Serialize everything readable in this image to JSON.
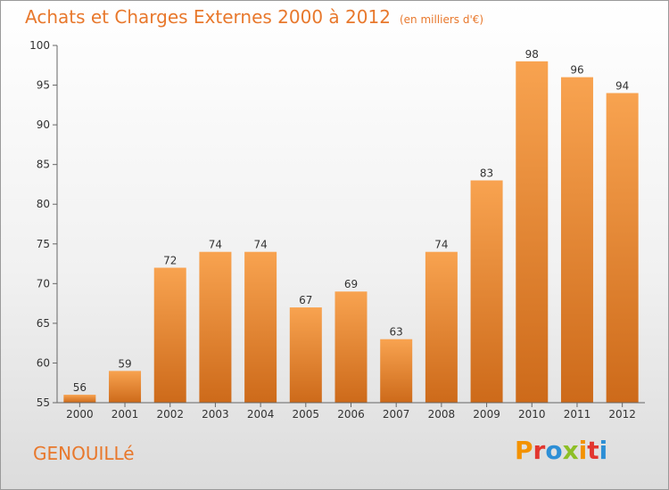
{
  "header": {
    "title": "Achats et Charges Externes 2000 à 2012",
    "unit": "(en milliers d'€)"
  },
  "footer": {
    "place": "GENOUILLé",
    "logo_letters": [
      "P",
      "r",
      "o",
      "x",
      "i",
      "t",
      "i"
    ],
    "logo_colors": [
      "#f39200",
      "#e2362f",
      "#2d8fd6",
      "#8dbf26",
      "#f39200",
      "#e2362f",
      "#2d8fd6"
    ]
  },
  "colors": {
    "bar_light": "#f8a350",
    "bar_dark": "#cd6a1a",
    "accent": "#e8782c"
  },
  "chart_data": {
    "type": "bar",
    "title": "Achats et Charges Externes 2000 à 2012",
    "unit": "(en milliers d'€)",
    "categories": [
      "2000",
      "2001",
      "2002",
      "2003",
      "2004",
      "2005",
      "2006",
      "2007",
      "2008",
      "2009",
      "2010",
      "2011",
      "2012"
    ],
    "values": [
      56,
      59,
      72,
      74,
      74,
      67,
      69,
      63,
      74,
      83,
      98,
      96,
      94
    ],
    "ylim": [
      55,
      100
    ],
    "yticks": [
      55,
      60,
      65,
      70,
      75,
      80,
      85,
      90,
      95,
      100
    ],
    "grid": false,
    "xlabel": "",
    "ylabel": ""
  }
}
